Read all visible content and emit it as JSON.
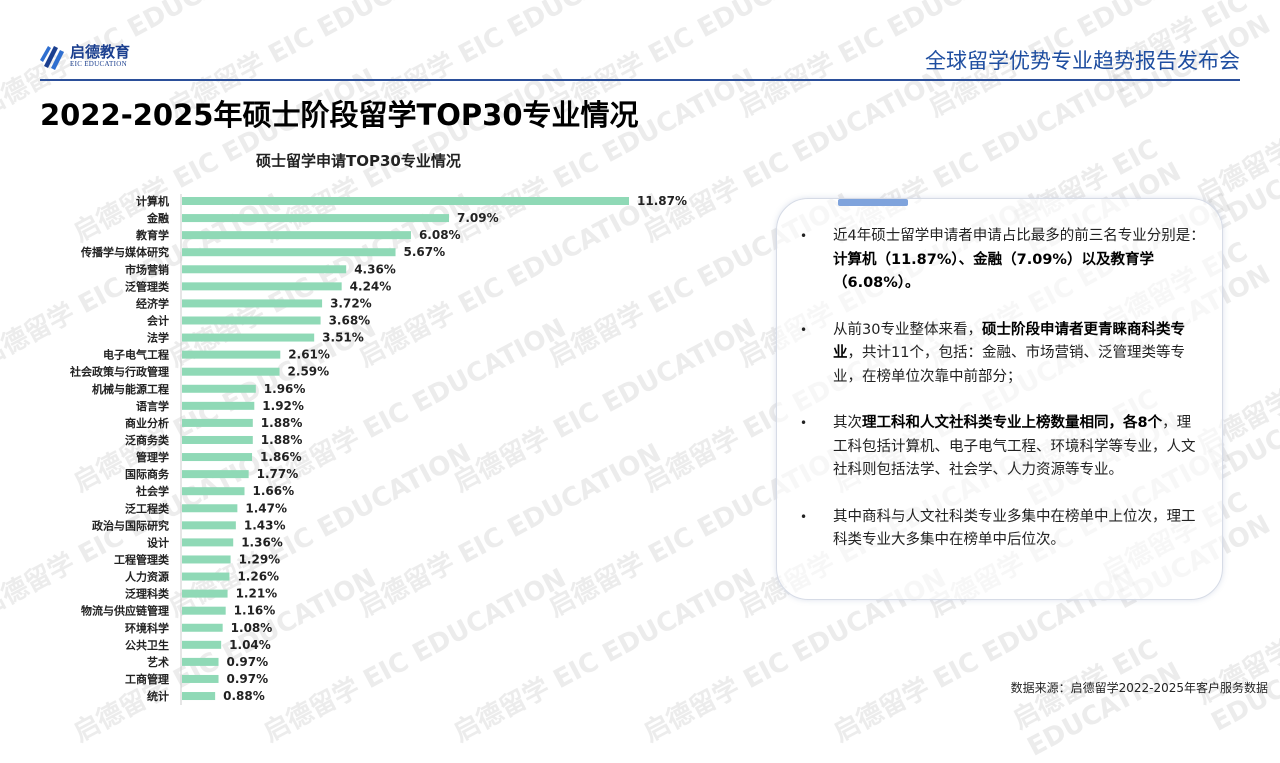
{
  "header": {
    "logo_cn": "启德教育",
    "logo_en": "EIC EDUCATION",
    "event_title": "全球留学优势专业趋势报告发布会",
    "brand_color": "#1f4ea0"
  },
  "page_title": "2022-2025年硕士阶段留学TOP30专业情况",
  "watermark": "启德留学 EIC EDUCATION",
  "chart_data": {
    "type": "bar",
    "orientation": "horizontal",
    "title": "硕士留学申请TOP30专业情况",
    "bar_color": "#8fd9b6",
    "categories": [
      "计算机",
      "金融",
      "教育学",
      "传播学与媒体研究",
      "市场营销",
      "泛管理类",
      "经济学",
      "会计",
      "法学",
      "电子电气工程",
      "社会政策与行政管理",
      "机械与能源工程",
      "语言学",
      "商业分析",
      "泛商务类",
      "管理学",
      "国际商务",
      "社会学",
      "泛工程类",
      "政治与国际研究",
      "设计",
      "工程管理类",
      "人力资源",
      "泛理科类",
      "物流与供应链管理",
      "环境科学",
      "公共卫生",
      "艺术",
      "工商管理",
      "统计"
    ],
    "values": [
      11.87,
      7.09,
      6.08,
      5.67,
      4.36,
      4.24,
      3.72,
      3.68,
      3.51,
      2.61,
      2.59,
      1.96,
      1.92,
      1.88,
      1.88,
      1.86,
      1.77,
      1.66,
      1.47,
      1.43,
      1.36,
      1.29,
      1.26,
      1.21,
      1.16,
      1.08,
      1.04,
      0.97,
      0.97,
      0.88
    ],
    "value_labels": [
      "11.87%",
      "7.09%",
      "6.08%",
      "5.67%",
      "4.36%",
      "4.24%",
      "3.72%",
      "3.68%",
      "3.51%",
      "2.61%",
      "2.59%",
      "1.96%",
      "1.92%",
      "1.88%",
      "1.88%",
      "1.86%",
      "1.77%",
      "1.66%",
      "1.47%",
      "1.43%",
      "1.36%",
      "1.29%",
      "1.26%",
      "1.21%",
      "1.16%",
      "1.08%",
      "1.04%",
      "0.97%",
      "0.97%",
      "0.88%"
    ],
    "unit": "%",
    "grid": false
  },
  "summary": {
    "bullets": [
      [
        {
          "t": "近4年硕士留学申请者申请占比最多的前三名专业分别是：",
          "b": false
        },
        {
          "t": "计算机（11.87%）、金融（7.09%）以及教育学（6.08%）。",
          "b": true
        }
      ],
      [
        {
          "t": "从前30专业整体来看，",
          "b": false
        },
        {
          "t": "硕士阶段申请者更青睐商科类专业",
          "b": true
        },
        {
          "t": "，共计11个，包括：金融、市场营销、泛管理类等专业，在榜单位次靠中前部分；",
          "b": false
        }
      ],
      [
        {
          "t": "其次",
          "b": false
        },
        {
          "t": "理工科和人文社科类专业上榜数量相同，各8个",
          "b": true
        },
        {
          "t": "，理工科包括计算机、电子电气工程、环境科学等专业，人文社科则包括法学、社会学、人力资源等专业。",
          "b": false
        }
      ],
      [
        {
          "t": "其中商科与人文社科类专业多集中在榜单中上位次，理工科类专业大多集中在榜单中后位次。",
          "b": false
        }
      ]
    ]
  },
  "source": "数据来源：启德留学2022-2025年客户服务数据"
}
